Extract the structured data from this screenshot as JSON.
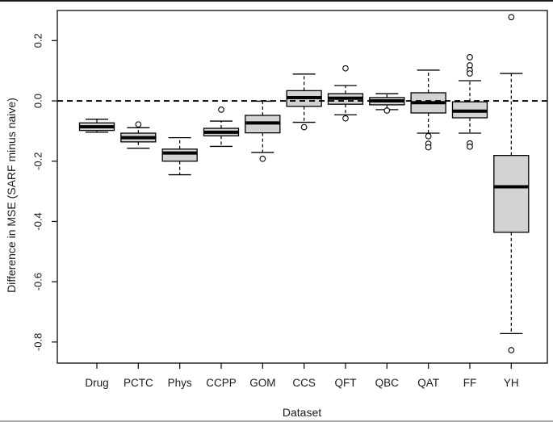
{
  "chart_data": {
    "type": "boxplot",
    "title": "",
    "xlabel": "Dataset",
    "ylabel": "Difference in MSE (SARF minus naive)",
    "categories": [
      "Drug",
      "PCTC",
      "Phys",
      "CCPP",
      "GOM",
      "CCS",
      "QFT",
      "QBC",
      "QAT",
      "FF",
      "YH"
    ],
    "y_ticks": [
      0.2,
      0.0,
      -0.2,
      -0.4,
      -0.6,
      -0.8
    ],
    "ylim": [
      -0.87,
      0.3
    ],
    "grid": false,
    "legend": "none",
    "zero_line": {
      "value": 0.0,
      "style": "dashed",
      "color": "#000000"
    },
    "box_fill": "#d3d3d3",
    "box_stroke": "#000000",
    "outlier_style": "open-circle",
    "whisker_style": "dashed",
    "series": [
      {
        "name": "Drug",
        "whisker_low": -0.104,
        "q1": -0.098,
        "median": -0.086,
        "q3": -0.073,
        "whisker_high": -0.061,
        "outliers": []
      },
      {
        "name": "PCTC",
        "whisker_low": -0.157,
        "q1": -0.136,
        "median": -0.122,
        "q3": -0.107,
        "whisker_high": -0.089,
        "outliers": [
          -0.078
        ]
      },
      {
        "name": "Phys",
        "whisker_low": -0.245,
        "q1": -0.2,
        "median": -0.173,
        "q3": -0.16,
        "whisker_high": -0.122,
        "outliers": []
      },
      {
        "name": "CCPP",
        "whisker_low": -0.151,
        "q1": -0.116,
        "median": -0.104,
        "q3": -0.091,
        "whisker_high": -0.067,
        "outliers": [
          -0.029
        ]
      },
      {
        "name": "GOM",
        "whisker_low": -0.171,
        "q1": -0.106,
        "median": -0.073,
        "q3": -0.048,
        "whisker_high": -0.001,
        "outliers": [
          -0.192
        ]
      },
      {
        "name": "CCS",
        "whisker_low": -0.071,
        "q1": -0.018,
        "median": 0.011,
        "q3": 0.034,
        "whisker_high": 0.089,
        "outliers": [
          -0.087
        ]
      },
      {
        "name": "QFT",
        "whisker_low": -0.046,
        "q1": -0.011,
        "median": 0.009,
        "q3": 0.024,
        "whisker_high": 0.051,
        "outliers": [
          0.108,
          -0.058
        ]
      },
      {
        "name": "QBC",
        "whisker_low": -0.029,
        "q1": -0.013,
        "median": 0.0,
        "q3": 0.011,
        "whisker_high": 0.024,
        "outliers": [
          -0.032
        ]
      },
      {
        "name": "QAT",
        "whisker_low": -0.107,
        "q1": -0.04,
        "median": -0.006,
        "q3": 0.027,
        "whisker_high": 0.102,
        "outliers": [
          -0.117,
          -0.142,
          -0.154
        ]
      },
      {
        "name": "FF",
        "whisker_low": -0.107,
        "q1": -0.056,
        "median": -0.034,
        "q3": -0.003,
        "whisker_high": 0.067,
        "outliers": [
          0.145,
          0.118,
          0.102,
          0.091,
          -0.141,
          -0.152
        ]
      },
      {
        "name": "YH",
        "whisker_low": -0.772,
        "q1": -0.436,
        "median": -0.285,
        "q3": -0.181,
        "whisker_high": 0.091,
        "outliers": [
          0.278,
          -0.827
        ]
      }
    ]
  }
}
